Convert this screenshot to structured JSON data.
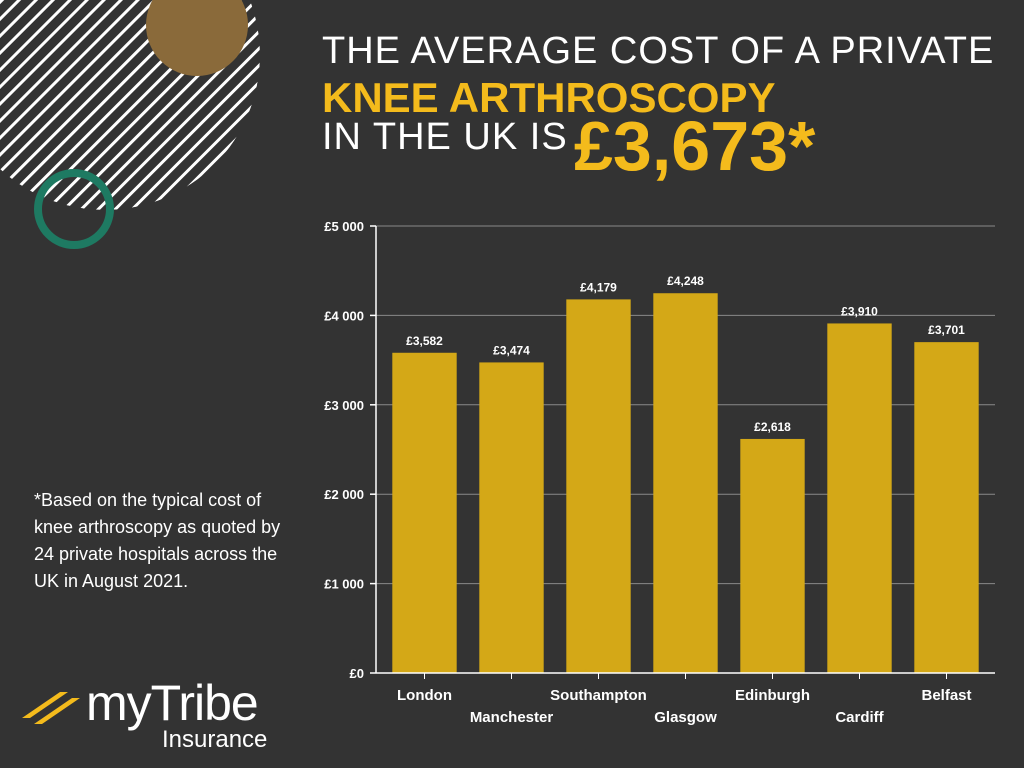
{
  "headline": {
    "line1": "THE AVERAGE COST OF A PRIVATE",
    "line2": "KNEE ARTHROSCOPY",
    "line3": "IN THE UK IS",
    "price": "£3,673*"
  },
  "footnote": "*Based on the typical cost of knee arthroscopy as quoted by 24 private hospitals across the UK in August 2021.",
  "logo": {
    "word_my": "my",
    "word_tribe": "Tribe",
    "sub": "Insurance"
  },
  "colors": {
    "background": "#333333",
    "accent": "#f4bb1c",
    "bar": "#d4a817",
    "circle_gold": "#8a6a3a",
    "circle_green": "#1e7a62"
  },
  "chart_data": {
    "type": "bar",
    "categories": [
      "London",
      "Manchester",
      "Southampton",
      "Glasgow",
      "Edinburgh",
      "Cardiff",
      "Belfast"
    ],
    "values": [
      3582,
      3474,
      4179,
      4248,
      2618,
      3910,
      3701
    ],
    "value_labels": [
      "£3,582",
      "£3,474",
      "£4,179",
      "£4,248",
      "£2,618",
      "£3,910",
      "£3,701"
    ],
    "yticks": [
      0,
      1000,
      2000,
      3000,
      4000,
      5000
    ],
    "ytick_labels": [
      "£0",
      "£1 000",
      "£2 000",
      "£3 000",
      "£4 000",
      "£5 000"
    ],
    "ylim": [
      0,
      5000
    ],
    "grid": true
  }
}
